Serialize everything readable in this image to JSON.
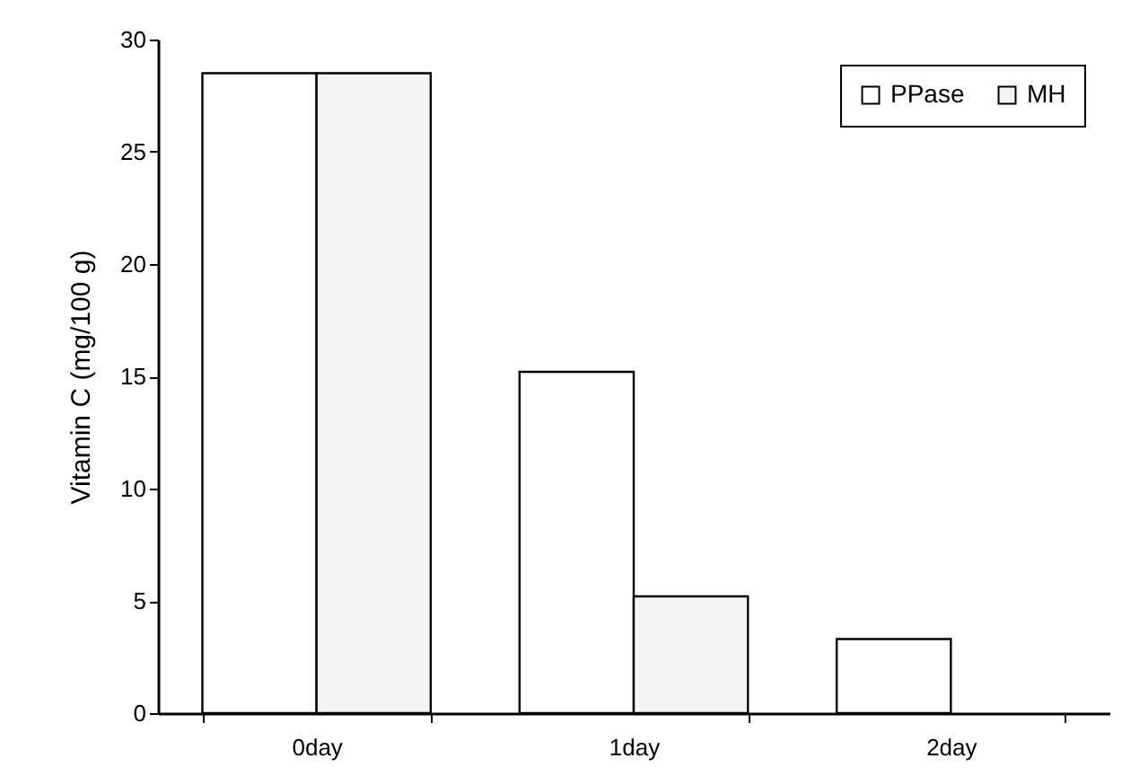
{
  "chart_data": {
    "type": "bar",
    "ylabel": "Vitamin C (mg/100 g)",
    "categories": [
      "0day",
      "1day",
      "2day"
    ],
    "series": [
      {
        "name": "PPase",
        "color": "#ffffff",
        "values": [
          28.5,
          15.2,
          3.3
        ]
      },
      {
        "name": "MH",
        "color": "#f4f4f4",
        "values": [
          28.5,
          5.2,
          null
        ]
      }
    ],
    "ylim": [
      0,
      30
    ],
    "yticks": [
      0,
      5,
      10,
      15,
      20,
      25,
      30
    ],
    "grid": false,
    "legend": "top right"
  }
}
